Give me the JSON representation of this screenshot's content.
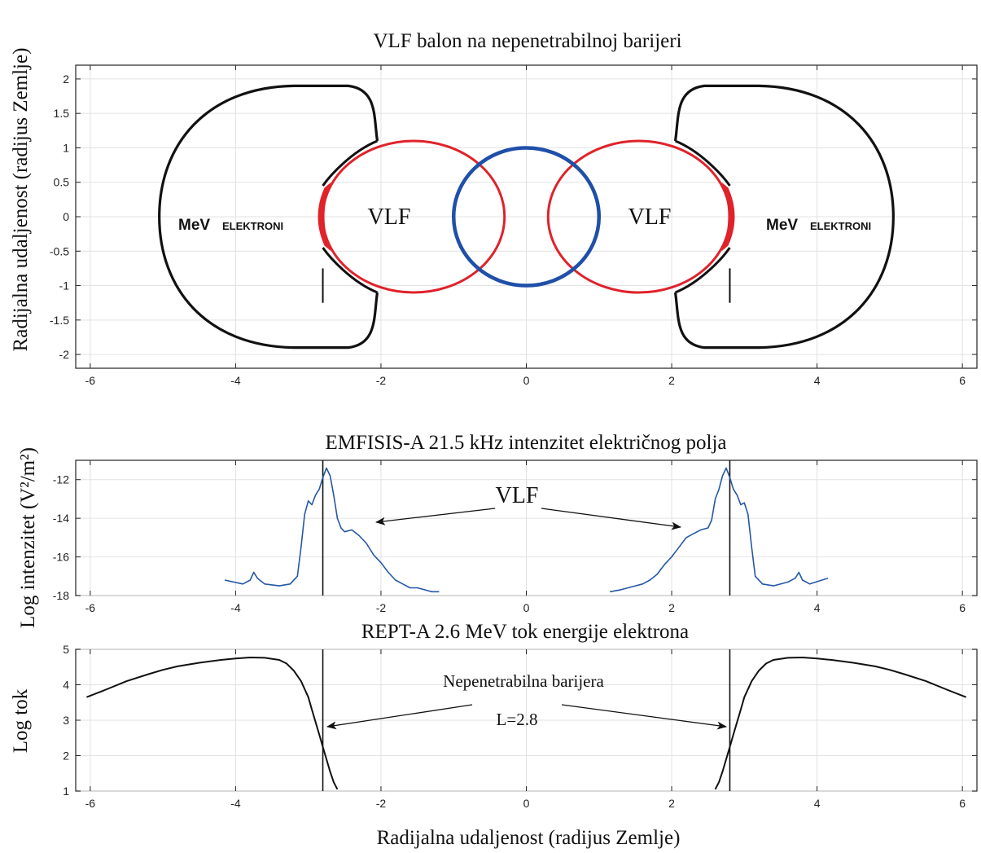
{
  "colors": {
    "blue": "#1f4fa8",
    "red": "#e0222a",
    "black": "#111111",
    "series_blue": "#2557a7",
    "grid": "#e2e2e2"
  },
  "xlabel": "Radijalna udaljenost (radijus Zemlje)",
  "chart_data": [
    {
      "type": "diagram",
      "title": "VLF balon na nepenetrabilnoj barijeri",
      "ylabel": "Radijalna udaljenost (radijus Zemlje)",
      "xlim": [
        -6.2,
        6.2
      ],
      "ylim": [
        -2.2,
        2.2
      ],
      "x_ticks": [
        -6,
        -4,
        -2,
        0,
        2,
        4,
        6
      ],
      "y_ticks": [
        2,
        1.5,
        1,
        0.5,
        0,
        -0.5,
        -1,
        -1.5,
        -2
      ],
      "grid": true,
      "labels": {
        "vlf_left": "VLF",
        "vlf_right": "VLF",
        "mev_left": "MeV",
        "mev_right": "MeV",
        "elektroni_left": "ELEKTRONI",
        "elektroni_right": "ELEKTRONI"
      },
      "earth": {
        "center": [
          0,
          0
        ],
        "radius": 1
      },
      "vlf_bubbles": [
        {
          "center": [
            -1.55,
            0
          ]
        },
        {
          "center": [
            1.55,
            0
          ]
        }
      ],
      "barrier_L": 2.8
    },
    {
      "type": "line",
      "title": "EMFISIS-A 21.5 kHz intenzitet električnog polja",
      "ylabel": "Log intenzitet (V²/m²)",
      "annotation": "VLF",
      "xlim": [
        -6.2,
        6.2
      ],
      "ylim": [
        -18,
        -11
      ],
      "x_ticks": [
        -6,
        -4,
        -2,
        0,
        2,
        4,
        6
      ],
      "y_ticks": [
        -12,
        -14,
        -16,
        -18
      ],
      "grid": true,
      "vlines": [
        -2.8,
        2.8
      ],
      "series": [
        {
          "x": [
            -4.15,
            -3.9,
            -3.8,
            -3.75,
            -3.7,
            -3.6,
            -3.4,
            -3.25,
            -3.15,
            -3.1,
            -3.05,
            -3.0,
            -2.95,
            -2.9,
            -2.85,
            -2.8,
            -2.75,
            -2.7,
            -2.65,
            -2.6,
            -2.55,
            -2.5,
            -2.4,
            -2.3,
            -2.2,
            -2.1,
            -2.0,
            -1.9,
            -1.8,
            -1.7,
            -1.6,
            -1.5,
            -1.4,
            -1.3,
            -1.2
          ],
          "y": [
            -17.2,
            -17.4,
            -17.2,
            -16.8,
            -17.1,
            -17.4,
            -17.5,
            -17.4,
            -17.0,
            -15.5,
            -13.8,
            -13.1,
            -13.3,
            -12.8,
            -12.5,
            -11.9,
            -11.4,
            -11.8,
            -12.8,
            -14.0,
            -14.5,
            -14.7,
            -14.6,
            -14.9,
            -15.3,
            -15.9,
            -16.3,
            -16.8,
            -17.2,
            -17.4,
            -17.6,
            -17.6,
            -17.7,
            -17.8,
            -17.8
          ]
        },
        {
          "x": [
            1.15,
            1.3,
            1.4,
            1.5,
            1.6,
            1.7,
            1.8,
            1.9,
            2.0,
            2.1,
            2.2,
            2.3,
            2.4,
            2.5,
            2.55,
            2.6,
            2.65,
            2.7,
            2.75,
            2.8,
            2.85,
            2.9,
            2.95,
            3.0,
            3.05,
            3.1,
            3.15,
            3.25,
            3.4,
            3.6,
            3.7,
            3.75,
            3.8,
            3.9,
            4.15
          ],
          "y": [
            -17.8,
            -17.7,
            -17.6,
            -17.5,
            -17.4,
            -17.2,
            -16.9,
            -16.4,
            -16.0,
            -15.5,
            -15.0,
            -14.8,
            -14.6,
            -14.5,
            -14.1,
            -13.0,
            -12.5,
            -11.8,
            -11.4,
            -11.9,
            -12.5,
            -12.8,
            -13.3,
            -13.2,
            -13.8,
            -15.5,
            -17.0,
            -17.4,
            -17.5,
            -17.3,
            -17.1,
            -16.8,
            -17.2,
            -17.4,
            -17.1
          ]
        }
      ]
    },
    {
      "type": "line",
      "title": "REPT-A 2.6 MeV tok energije elektrona",
      "ylabel": "Log tok",
      "annotation_1": "Nepenetrabilna barijera",
      "annotation_2": "L=2.8",
      "xlim": [
        -6.2,
        6.2
      ],
      "ylim": [
        1,
        5
      ],
      "x_ticks": [
        -6,
        -4,
        -2,
        0,
        2,
        4,
        6
      ],
      "y_ticks": [
        5,
        4,
        3,
        2,
        1
      ],
      "grid": true,
      "vlines": [
        -2.8,
        2.8
      ],
      "series": [
        {
          "x": [
            -6.05,
            -5.8,
            -5.5,
            -5.2,
            -5.0,
            -4.8,
            -4.5,
            -4.2,
            -4.0,
            -3.8,
            -3.6,
            -3.4,
            -3.3,
            -3.2,
            -3.1,
            -3.0,
            -2.95,
            -2.9,
            -2.85,
            -2.8,
            -2.75,
            -2.7,
            -2.65,
            -2.6
          ],
          "y": [
            3.65,
            3.85,
            4.1,
            4.3,
            4.42,
            4.52,
            4.62,
            4.7,
            4.74,
            4.77,
            4.76,
            4.7,
            4.6,
            4.4,
            4.1,
            3.65,
            3.3,
            2.95,
            2.6,
            2.25,
            1.9,
            1.55,
            1.25,
            1.05
          ]
        },
        {
          "x": [
            2.6,
            2.65,
            2.7,
            2.75,
            2.8,
            2.85,
            2.9,
            2.95,
            3.0,
            3.1,
            3.2,
            3.3,
            3.4,
            3.6,
            3.8,
            4.0,
            4.2,
            4.5,
            4.8,
            5.0,
            5.2,
            5.5,
            5.8,
            6.05
          ],
          "y": [
            1.05,
            1.25,
            1.55,
            1.9,
            2.25,
            2.6,
            2.95,
            3.3,
            3.65,
            4.1,
            4.4,
            4.6,
            4.7,
            4.76,
            4.77,
            4.74,
            4.7,
            4.62,
            4.52,
            4.42,
            4.3,
            4.1,
            3.85,
            3.65
          ]
        }
      ]
    }
  ]
}
